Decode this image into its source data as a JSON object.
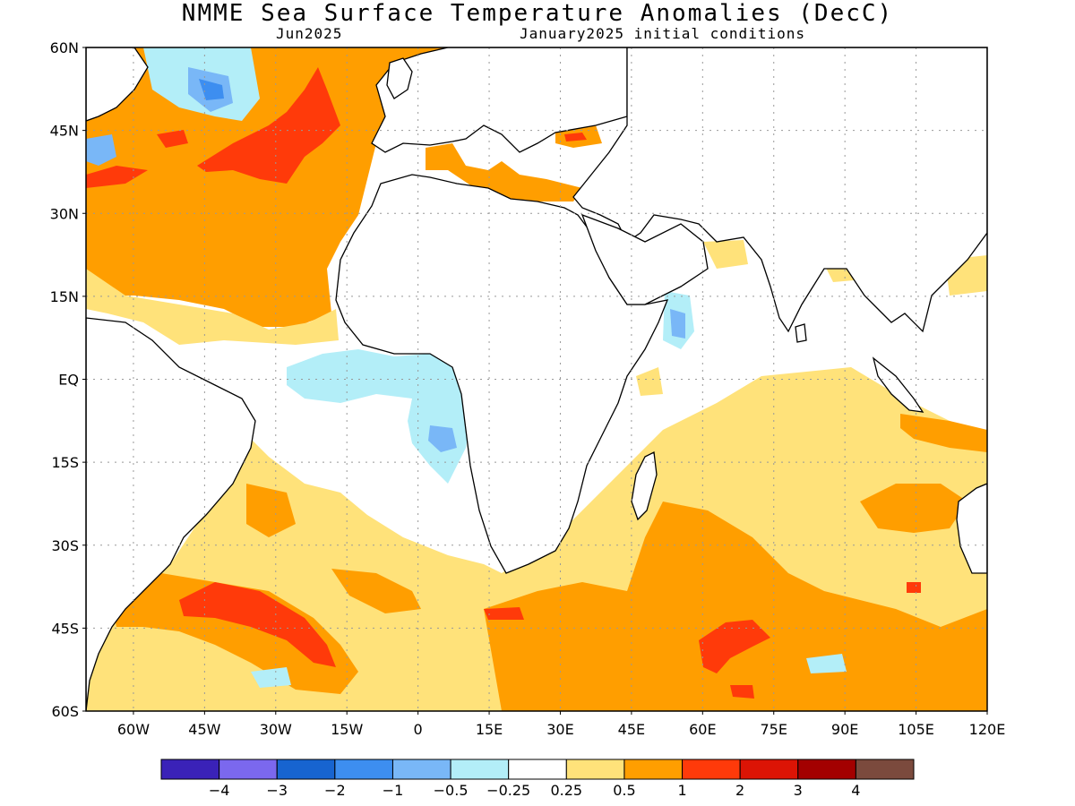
{
  "title": "NMME Sea Surface Temperature Anomalies (DecC)",
  "subtitle_left": "Jun2025",
  "subtitle_right": "January2025 initial conditions",
  "map": {
    "lat_labels": [
      "60N",
      "45N",
      "30N",
      "15N",
      "EQ",
      "15S",
      "30S",
      "45S",
      "60S"
    ],
    "lon_labels": [
      "60W",
      "45W",
      "30W",
      "15W",
      "0",
      "15E",
      "30E",
      "45E",
      "60E",
      "75E",
      "90E",
      "105E",
      "120E"
    ],
    "lat_range": [
      -60,
      60
    ],
    "lon_range": [
      -70,
      120
    ]
  },
  "colorbar": {
    "colors": [
      "#3a22b8",
      "#7b68ee",
      "#1764d0",
      "#3d8ef0",
      "#79b7f7",
      "#b3eef8",
      "#ffffff",
      "#ffe27a",
      "#ff9e00",
      "#ff3a0a",
      "#dc1405",
      "#a30000",
      "#7b4a3d"
    ],
    "labels": [
      "-4",
      "-3",
      "-2",
      "-1",
      "-0.5",
      "-0.25",
      "0.25",
      "0.5",
      "1",
      "2",
      "3",
      "4"
    ]
  }
}
